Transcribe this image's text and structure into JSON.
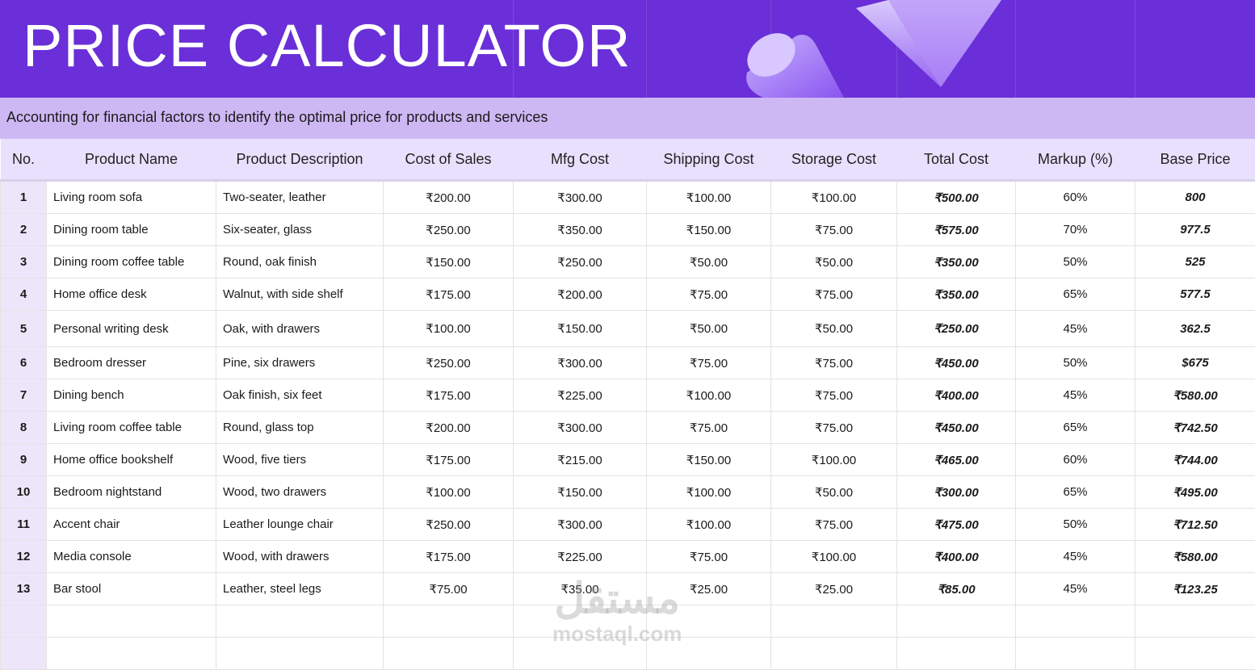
{
  "header": {
    "title": "PRICE CALCULATOR",
    "subtitle": "Accounting for financial factors to identify the optimal price for products and services"
  },
  "table": {
    "columns": [
      "No.",
      "Product Name",
      "Product Description",
      "Cost of Sales",
      "Mfg Cost",
      "Shipping Cost",
      "Storage Cost",
      "Total Cost",
      "Markup (%)",
      "Base Price"
    ],
    "rows": [
      [
        "1",
        "Living room sofa",
        "Two-seater, leather",
        "₹200.00",
        "₹300.00",
        "₹100.00",
        "₹100.00",
        "₹500.00",
        "60%",
        "800"
      ],
      [
        "2",
        "Dining room table",
        "Six-seater, glass",
        "₹250.00",
        "₹350.00",
        "₹150.00",
        "₹75.00",
        "₹575.00",
        "70%",
        "977.5"
      ],
      [
        "3",
        "Dining room coffee table",
        "Round, oak finish",
        "₹150.00",
        "₹250.00",
        "₹50.00",
        "₹50.00",
        "₹350.00",
        "50%",
        "525"
      ],
      [
        "4",
        "Home office desk",
        "Walnut, with side shelf",
        "₹175.00",
        "₹200.00",
        "₹75.00",
        "₹75.00",
        "₹350.00",
        "65%",
        "577.5"
      ],
      [
        "5",
        "Personal writing desk",
        "Oak, with drawers",
        "₹100.00",
        "₹150.00",
        "₹50.00",
        "₹50.00",
        "₹250.00",
        "45%",
        "362.5"
      ],
      [
        "6",
        "Bedroom dresser",
        "Pine, six drawers",
        "₹250.00",
        "₹300.00",
        "₹75.00",
        "₹75.00",
        "₹450.00",
        "50%",
        "$675"
      ],
      [
        "7",
        "Dining bench",
        "Oak finish, six feet",
        "₹175.00",
        "₹225.00",
        "₹100.00",
        "₹75.00",
        "₹400.00",
        "45%",
        "₹580.00"
      ],
      [
        "8",
        "Living room coffee table",
        "Round, glass top",
        "₹200.00",
        "₹300.00",
        "₹75.00",
        "₹75.00",
        "₹450.00",
        "65%",
        "₹742.50"
      ],
      [
        "9",
        "Home office bookshelf",
        "Wood, five tiers",
        "₹175.00",
        "₹215.00",
        "₹150.00",
        "₹100.00",
        "₹465.00",
        "60%",
        "₹744.00"
      ],
      [
        "10",
        "Bedroom nightstand",
        "Wood, two drawers",
        "₹100.00",
        "₹150.00",
        "₹100.00",
        "₹50.00",
        "₹300.00",
        "65%",
        "₹495.00"
      ],
      [
        "11",
        "Accent chair",
        "Leather lounge chair",
        "₹250.00",
        "₹300.00",
        "₹100.00",
        "₹75.00",
        "₹475.00",
        "50%",
        "₹712.50"
      ],
      [
        "12",
        "Media console",
        "Wood, with drawers",
        "₹175.00",
        "₹225.00",
        "₹75.00",
        "₹100.00",
        "₹400.00",
        "45%",
        "₹580.00"
      ],
      [
        "13",
        "Bar stool",
        "Leather, steel legs",
        "₹75.00",
        "₹35.00",
        "₹25.00",
        "₹25.00",
        "₹85.00",
        "45%",
        "₹123.25"
      ]
    ]
  },
  "watermark": [
    "مستقل",
    "mostaql.com"
  ]
}
